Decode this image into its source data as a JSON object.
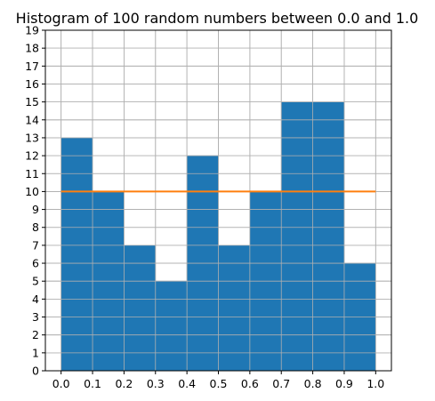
{
  "chart_data": {
    "type": "bar",
    "title": "Histogram of 100 random numbers between 0.0 and 1.0",
    "xlabel": "",
    "ylabel": "",
    "bins": [
      0.0,
      0.1,
      0.2,
      0.3,
      0.4,
      0.5,
      0.6,
      0.7,
      0.8,
      0.9,
      1.0
    ],
    "counts": [
      13,
      10,
      7,
      5,
      12,
      7,
      10,
      15,
      15,
      6
    ],
    "expected_line": {
      "y": 10,
      "x": [
        0.0,
        1.0
      ]
    },
    "xlim": [
      -0.05,
      1.05
    ],
    "ylim": [
      0,
      19
    ],
    "x_ticks": [
      "0.0",
      "0.1",
      "0.2",
      "0.3",
      "0.4",
      "0.5",
      "0.6",
      "0.7",
      "0.8",
      "0.9",
      "1.0"
    ],
    "y_ticks": [
      "0",
      "1",
      "2",
      "3",
      "4",
      "5",
      "6",
      "7",
      "8",
      "9",
      "10",
      "11",
      "12",
      "13",
      "14",
      "15",
      "16",
      "17",
      "18",
      "19"
    ],
    "grid": true,
    "legend": "none",
    "colors": {
      "bars": "#1f77b4",
      "line": "#ff7f0e",
      "grid": "#b0b0b0",
      "axes": "#000000"
    }
  }
}
